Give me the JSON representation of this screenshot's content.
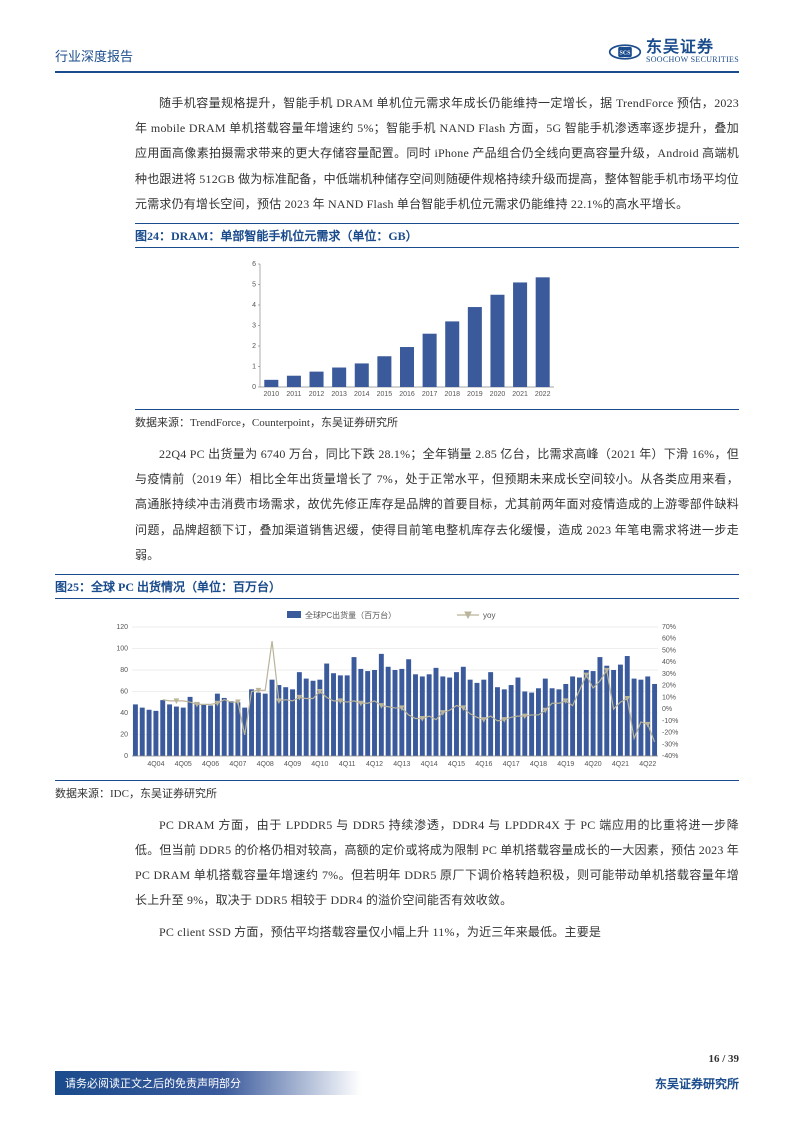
{
  "header": {
    "title": "行业深度报告",
    "logo_cn": "东吴证券",
    "logo_en": "SOOCHOW SECURITIES"
  },
  "para1": "随手机容量规格提升，智能手机 DRAM 单机位元需求年成长仍能维持一定增长，据 TrendForce 预估，2023 年 mobile DRAM 单机搭载容量年增速约 5%；智能手机 NAND Flash 方面，5G 智能手机渗透率逐步提升，叠加应用面高像素拍摄需求带来的更大存储容量配置。同时 iPhone 产品组合仍全线向更高容量升级，Android 高端机种也跟进将 512GB 做为标准配备，中低端机种储存空间则随硬件规格持续升级而提高，整体智能手机市场平均位元需求仍有增长空间，预估 2023 年 NAND Flash 单台智能手机位元需求仍能维持 22.1%的高水平增长。",
  "fig24": {
    "title": "图24：DRAM：单部智能手机位元需求（单位：GB）",
    "source": "数据来源：TrendForce，Counterpoint，东吴证券研究所",
    "type": "bar",
    "categories": [
      "2010",
      "2011",
      "2012",
      "2013",
      "2014",
      "2015",
      "2016",
      "2017",
      "2018",
      "2019",
      "2020",
      "2021",
      "2022"
    ],
    "values": [
      0.35,
      0.55,
      0.75,
      0.95,
      1.15,
      1.5,
      1.95,
      2.6,
      3.2,
      3.9,
      4.5,
      5.1,
      5.35
    ],
    "ylim": [
      0,
      6
    ],
    "ytick_step": 1,
    "bar_color": "#3a5a9c",
    "axis_fontsize": 7,
    "background": "#ffffff"
  },
  "para2": "22Q4 PC 出货量为 6740 万台，同比下跌 28.1%；全年销量 2.85 亿台，比需求高峰（2021 年）下滑 16%，但与疫情前（2019 年）相比全年出货量增长了 7%，处于正常水平，但预期未来成长空间较小。从各类应用来看，高通胀持续冲击消费市场需求，故优先修正库存是品牌的首要目标，尤其前两年面对疫情造成的上游零部件缺料问题，品牌超额下订，叠加渠道销售迟缓，使得目前笔电整机库存去化缓慢，造成 2023 年笔电需求将进一步走弱。",
  "fig25": {
    "title": "图25：全球 PC 出货情况（单位：百万台）",
    "source": "数据来源：IDC，东吴证券研究所",
    "type": "bar+line",
    "legend_bar": "全球PC出货量（百万台）",
    "legend_line": "yoy",
    "x_labels": [
      "4Q04",
      "4Q05",
      "4Q06",
      "4Q07",
      "4Q08",
      "4Q09",
      "4Q10",
      "4Q11",
      "4Q12",
      "4Q13",
      "4Q14",
      "4Q15",
      "4Q16",
      "4Q17",
      "4Q18",
      "4Q19",
      "4Q20",
      "4Q21",
      "4Q22"
    ],
    "ylim_left": [
      0,
      120
    ],
    "yticks_left": [
      0,
      20,
      40,
      60,
      80,
      100,
      120
    ],
    "ylim_right": [
      -40,
      70
    ],
    "yticks_right": [
      -40,
      -30,
      -20,
      -10,
      0,
      10,
      20,
      30,
      40,
      50,
      60,
      70
    ],
    "bar_color": "#3a5a9c",
    "line_color": "#b9b49a",
    "bar_values": [
      48,
      45,
      43,
      42,
      52,
      48,
      46,
      45,
      55,
      50,
      48,
      47,
      58,
      54,
      51,
      50,
      45,
      62,
      59,
      58,
      71,
      66,
      64,
      62,
      78,
      72,
      70,
      71,
      86,
      77,
      75,
      75,
      92,
      81,
      79,
      80,
      95,
      83,
      80,
      81,
      90,
      76,
      74,
      76,
      82,
      74,
      73,
      78,
      83,
      71,
      68,
      71,
      78,
      64,
      62,
      66,
      73,
      60,
      59,
      63,
      72,
      63,
      62,
      67,
      74,
      73,
      80,
      79,
      92,
      84,
      80,
      85,
      93,
      72,
      71,
      74,
      67
    ],
    "yoy_values": [
      null,
      null,
      null,
      null,
      8,
      7,
      7,
      7,
      6,
      4,
      4,
      4,
      5,
      8,
      6,
      6,
      -22,
      15,
      16,
      16,
      58,
      7,
      8,
      7,
      10,
      9,
      9,
      15,
      10,
      7,
      7,
      6,
      7,
      5,
      5,
      7,
      3,
      2,
      1,
      1,
      -5,
      -8,
      -8,
      -6,
      -9,
      -3,
      -1,
      3,
      1,
      -4,
      -7,
      -9,
      -6,
      -10,
      -9,
      -7,
      -6,
      -6,
      -5,
      -5,
      -1,
      5,
      5,
      7,
      3,
      16,
      29,
      18,
      24,
      33,
      0,
      6,
      9,
      -25,
      -11,
      -13,
      -28
    ],
    "axis_fontsize": 7
  },
  "para3": "PC DRAM 方面，由于 LPDDR5 与 DDR5 持续渗透，DDR4 与 LPDDR4X 于 PC 端应用的比重将进一步降低。但当前 DDR5 的价格仍相对较高，高额的定价或将成为限制 PC 单机搭载容量成长的一大因素，预估 2023 年 PC DRAM 单机搭载容量年增速约 7%。但若明年 DDR5 原厂下调价格转趋积极，则可能带动单机搭载容量年增长上升至 9%，取决于 DDR5 相较于 DDR4 的溢价空间能否有效收敛。",
  "para4": "PC client SSD 方面，预估平均搭载容量仅小幅上升 11%，为近三年来最低。主要是",
  "footer": {
    "page": "16 / 39",
    "disclaimer": "请务必阅读正文之后的免责声明部分",
    "research": "东吴证券研究所"
  }
}
